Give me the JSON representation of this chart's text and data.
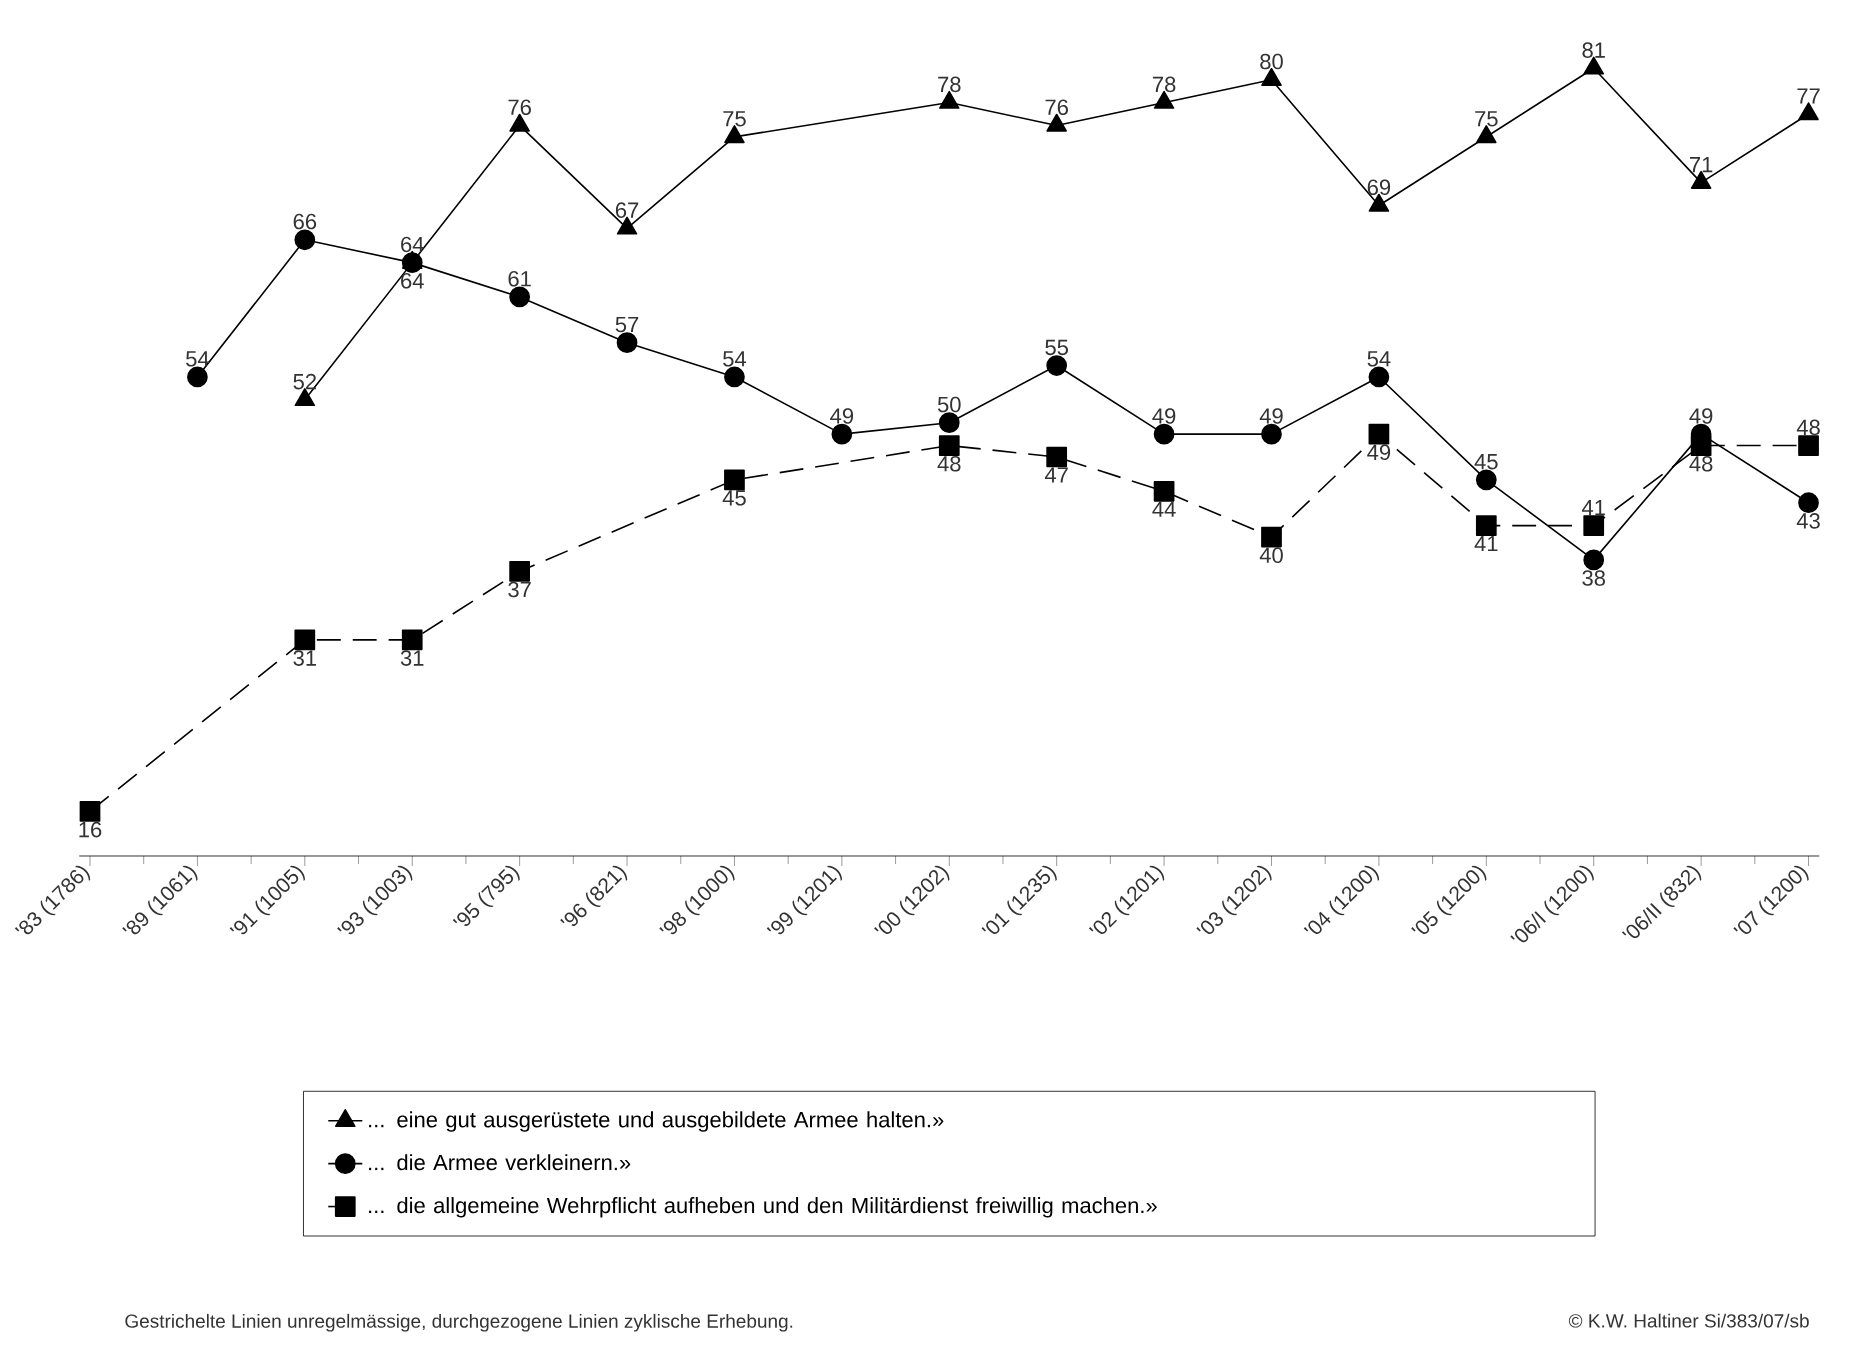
{
  "chart_data": {
    "type": "line",
    "categories": [
      "'83 (1786)",
      "'89 (1061)",
      "'91 (1005)",
      "'93 (1003)",
      "'95 (795)",
      "'96 (821)",
      "'98 (1000)",
      "'99 (1201)",
      "'00 (1202)",
      "'01 (1235)",
      "'02 (1201)",
      "'03 (1202)",
      "'04 (1200)",
      "'05 (1200)",
      "'06/I (1200)",
      "'06/II (832)",
      "'07 (1200)"
    ],
    "series": [
      {
        "name": "... eine gut ausgerüstete und ausgebildete Armee halten.»",
        "color": "#000000",
        "marker": "triangle",
        "line_style": "solid",
        "values": [
          null,
          null,
          52,
          64,
          76,
          67,
          75,
          null,
          78,
          76,
          78,
          80,
          69,
          75,
          81,
          71,
          77
        ]
      },
      {
        "name": "... die Armee verkleinern.»",
        "color": "#000000",
        "marker": "circle",
        "line_style": "solid",
        "values": [
          null,
          54,
          66,
          64,
          61,
          57,
          54,
          49,
          50,
          55,
          49,
          49,
          54,
          45,
          38,
          49,
          43
        ]
      },
      {
        "name": "... die allgemeine Wehrpflicht aufheben und den Militärdienst freiwillig machen.»",
        "color": "#000000",
        "marker": "square",
        "line_style": "dashed",
        "values": [
          16,
          null,
          31,
          31,
          37,
          null,
          45,
          null,
          48,
          47,
          44,
          40,
          49,
          41,
          41,
          48,
          48
        ]
      }
    ],
    "data_labels": true,
    "legend": "bottom",
    "annotations": [
      "Gestrichelte Linien unregelmässige, durchgezogene Linien zyklische Erhebung.",
      "© K.W. Haltiner Si/383/07/sb"
    ]
  }
}
